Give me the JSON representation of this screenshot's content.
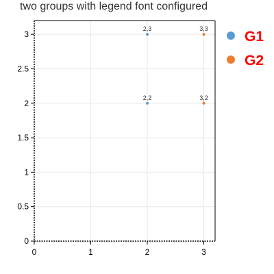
{
  "chart_data": {
    "type": "scatter",
    "title": "two groups with legend font configured",
    "xlabel": "",
    "ylabel": "",
    "xlim": [
      0,
      3.2
    ],
    "ylim": [
      0,
      3.2
    ],
    "x_ticks": [
      0,
      1,
      2,
      3
    ],
    "y_ticks": [
      0,
      0.5,
      1,
      1.5,
      2,
      2.5,
      3
    ],
    "x_tick_labels": [
      "0",
      "1",
      "2",
      "3"
    ],
    "y_tick_labels": [
      "0",
      "0.5",
      "1",
      "1.5",
      "2",
      "2.5",
      "3"
    ],
    "grid": true,
    "legend_position": "right",
    "legend_text_color": "#ff0000",
    "series": [
      {
        "name": "G1",
        "color": "#5b9bd5",
        "points": [
          {
            "x": 2,
            "y": 2,
            "label": "2,2"
          },
          {
            "x": 2,
            "y": 3,
            "label": "2,3"
          }
        ]
      },
      {
        "name": "G2",
        "color": "#ed7d31",
        "points": [
          {
            "x": 3,
            "y": 2,
            "label": "3,2"
          },
          {
            "x": 3,
            "y": 3,
            "label": "3,3"
          }
        ]
      }
    ]
  }
}
